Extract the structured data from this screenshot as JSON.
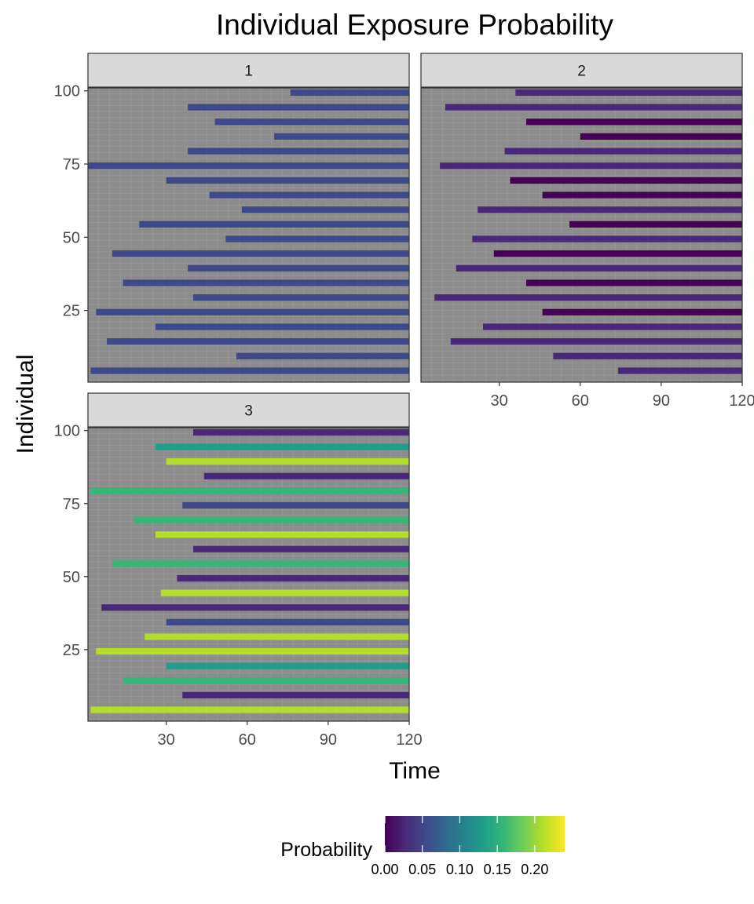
{
  "chart_data": {
    "type": "heatmap",
    "title": "Individual Exposure Probability",
    "xlabel": "Time",
    "ylabel": "Individual",
    "facets": [
      "1",
      "2",
      "3"
    ],
    "x_range": [
      1,
      120
    ],
    "y_range": [
      1,
      100
    ],
    "x_ticks": [
      30,
      60,
      90,
      120
    ],
    "y_ticks": [
      25,
      50,
      75,
      100
    ],
    "missing_color": "#8c8c8c",
    "grid": true,
    "legend": {
      "title": "Probability",
      "position": "bottom",
      "range": [
        0,
        0.24
      ],
      "ticks": [
        "0.00",
        "0.05",
        "0.10",
        "0.15",
        "0.20"
      ],
      "tick_values": [
        0,
        0.05,
        0.1,
        0.15,
        0.2
      ]
    },
    "colormap": [
      "#440154",
      "#482878",
      "#3e4989",
      "#31688e",
      "#26828e",
      "#1f9e89",
      "#35b779",
      "#6ece58",
      "#b5de2b",
      "#fde725"
    ],
    "panels": [
      {
        "facet": "1",
        "rows": [
          {
            "individual": 100,
            "start": 76,
            "end": 120,
            "probability": 0.05
          },
          {
            "individual": 95,
            "start": 38,
            "end": 120,
            "probability": 0.05
          },
          {
            "individual": 90,
            "start": 48,
            "end": 120,
            "probability": 0.05
          },
          {
            "individual": 85,
            "start": 70,
            "end": 120,
            "probability": 0.045
          },
          {
            "individual": 80,
            "start": 38,
            "end": 120,
            "probability": 0.05
          },
          {
            "individual": 75,
            "start": 1,
            "end": 120,
            "probability": 0.065
          },
          {
            "individual": 70,
            "start": 30,
            "end": 120,
            "probability": 0.05
          },
          {
            "individual": 65,
            "start": 46,
            "end": 120,
            "probability": 0.045
          },
          {
            "individual": 60,
            "start": 58,
            "end": 120,
            "probability": 0.05
          },
          {
            "individual": 55,
            "start": 20,
            "end": 120,
            "probability": 0.05
          },
          {
            "individual": 50,
            "start": 52,
            "end": 120,
            "probability": 0.055
          },
          {
            "individual": 45,
            "start": 10,
            "end": 120,
            "probability": 0.05
          },
          {
            "individual": 40,
            "start": 38,
            "end": 120,
            "probability": 0.05
          },
          {
            "individual": 35,
            "start": 14,
            "end": 120,
            "probability": 0.05
          },
          {
            "individual": 30,
            "start": 40,
            "end": 120,
            "probability": 0.05
          },
          {
            "individual": 25,
            "start": 4,
            "end": 120,
            "probability": 0.06
          },
          {
            "individual": 20,
            "start": 26,
            "end": 120,
            "probability": 0.05
          },
          {
            "individual": 15,
            "start": 8,
            "end": 120,
            "probability": 0.055
          },
          {
            "individual": 10,
            "start": 56,
            "end": 120,
            "probability": 0.05
          },
          {
            "individual": 5,
            "start": 2,
            "end": 120,
            "probability": 0.055
          }
        ]
      },
      {
        "facet": "2",
        "rows": [
          {
            "individual": 100,
            "start": 36,
            "end": 120,
            "probability": 0.015
          },
          {
            "individual": 95,
            "start": 10,
            "end": 120,
            "probability": 0.015
          },
          {
            "individual": 90,
            "start": 40,
            "end": 120,
            "probability": 0.01
          },
          {
            "individual": 85,
            "start": 60,
            "end": 120,
            "probability": 0.01
          },
          {
            "individual": 80,
            "start": 32,
            "end": 120,
            "probability": 0.015
          },
          {
            "individual": 75,
            "start": 8,
            "end": 120,
            "probability": 0.02
          },
          {
            "individual": 70,
            "start": 34,
            "end": 120,
            "probability": 0.01
          },
          {
            "individual": 65,
            "start": 46,
            "end": 120,
            "probability": 0.01
          },
          {
            "individual": 60,
            "start": 22,
            "end": 120,
            "probability": 0.015
          },
          {
            "individual": 55,
            "start": 56,
            "end": 120,
            "probability": 0.01
          },
          {
            "individual": 50,
            "start": 20,
            "end": 120,
            "probability": 0.015
          },
          {
            "individual": 45,
            "start": 28,
            "end": 120,
            "probability": 0.01
          },
          {
            "individual": 40,
            "start": 14,
            "end": 120,
            "probability": 0.015
          },
          {
            "individual": 35,
            "start": 40,
            "end": 120,
            "probability": 0.01
          },
          {
            "individual": 30,
            "start": 6,
            "end": 120,
            "probability": 0.02
          },
          {
            "individual": 25,
            "start": 46,
            "end": 120,
            "probability": 0.01
          },
          {
            "individual": 20,
            "start": 24,
            "end": 120,
            "probability": 0.015
          },
          {
            "individual": 15,
            "start": 12,
            "end": 120,
            "probability": 0.02
          },
          {
            "individual": 10,
            "start": 50,
            "end": 120,
            "probability": 0.015
          },
          {
            "individual": 5,
            "start": 74,
            "end": 120,
            "probability": 0.015
          }
        ]
      },
      {
        "facet": "3",
        "rows": [
          {
            "individual": 100,
            "start": 40,
            "end": 120,
            "probability": 0.02
          },
          {
            "individual": 95,
            "start": 26,
            "end": 120,
            "probability": 0.12
          },
          {
            "individual": 90,
            "start": 30,
            "end": 120,
            "probability": 0.22
          },
          {
            "individual": 85,
            "start": 44,
            "end": 120,
            "probability": 0.03
          },
          {
            "individual": 80,
            "start": 2,
            "end": 120,
            "probability": 0.15
          },
          {
            "individual": 75,
            "start": 36,
            "end": 120,
            "probability": 0.05
          },
          {
            "individual": 70,
            "start": 18,
            "end": 120,
            "probability": 0.16
          },
          {
            "individual": 65,
            "start": 26,
            "end": 120,
            "probability": 0.22
          },
          {
            "individual": 60,
            "start": 40,
            "end": 120,
            "probability": 0.03
          },
          {
            "individual": 55,
            "start": 10,
            "end": 120,
            "probability": 0.17
          },
          {
            "individual": 50,
            "start": 34,
            "end": 120,
            "probability": 0.02
          },
          {
            "individual": 45,
            "start": 28,
            "end": 120,
            "probability": 0.22
          },
          {
            "individual": 40,
            "start": 6,
            "end": 120,
            "probability": 0.02
          },
          {
            "individual": 35,
            "start": 30,
            "end": 120,
            "probability": 0.06
          },
          {
            "individual": 30,
            "start": 22,
            "end": 120,
            "probability": 0.22
          },
          {
            "individual": 25,
            "start": 4,
            "end": 120,
            "probability": 0.22
          },
          {
            "individual": 20,
            "start": 30,
            "end": 120,
            "probability": 0.12
          },
          {
            "individual": 15,
            "start": 14,
            "end": 120,
            "probability": 0.15
          },
          {
            "individual": 10,
            "start": 36,
            "end": 120,
            "probability": 0.03
          },
          {
            "individual": 5,
            "start": 2,
            "end": 120,
            "probability": 0.22
          }
        ]
      }
    ]
  }
}
